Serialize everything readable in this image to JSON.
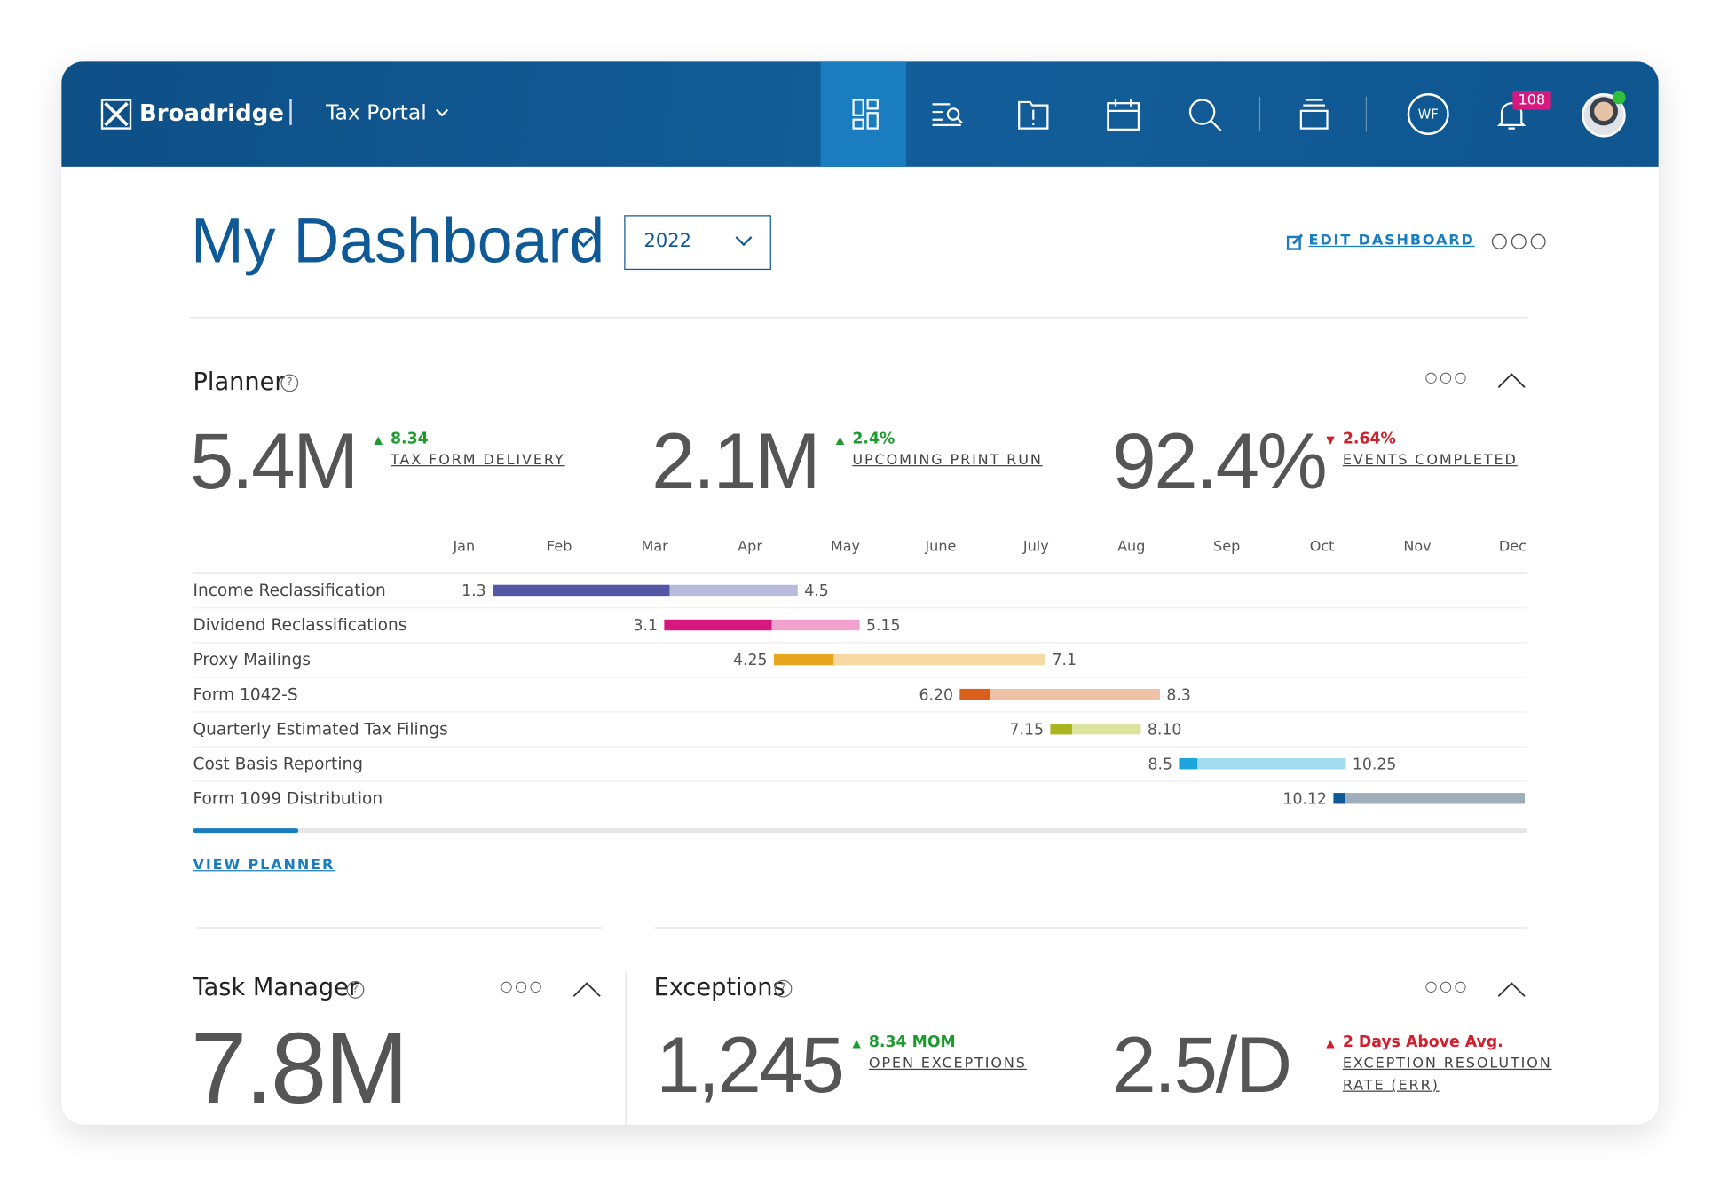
{
  "header": {
    "brand": "Broadridge",
    "app": "Tax Portal",
    "initials": "WF",
    "notifications": "108"
  },
  "page": {
    "title": "My Dashboard",
    "year": "2022",
    "edit": "EDIT DASHBOARD"
  },
  "planner": {
    "title": "Planner",
    "kpis": [
      {
        "value": "5.4M",
        "change": "8.34",
        "direction": "up",
        "color": "#1f9a2f",
        "label": "TAX FORM DELIVERY"
      },
      {
        "value": "2.1M",
        "change": "2.4%",
        "direction": "up",
        "color": "#1f9a2f",
        "label": "UPCOMING PRINT RUN"
      },
      {
        "value": "92.4%",
        "change": "2.64%",
        "direction": "down",
        "color": "#d0202e",
        "label": "EVENTS COMPLETED"
      }
    ],
    "months": [
      "Jan",
      "Feb",
      "Mar",
      "Apr",
      "May",
      "June",
      "July",
      "Aug",
      "Sep",
      "Oct",
      "Nov",
      "Dec"
    ],
    "rows": [
      {
        "name": "Income Reclassification",
        "start": 1.3,
        "end": 4.5,
        "progress": 58,
        "color": "#5457a6",
        "light": "#b9bbdd"
      },
      {
        "name": "Dividend Reclassifications",
        "start": 3.1,
        "end": 5.15,
        "progress": 55,
        "color": "#d6197f",
        "light": "#eea2cd"
      },
      {
        "name": "Proxy Mailings",
        "start": 4.25,
        "end": 7.1,
        "progress": 22,
        "color": "#e8a620",
        "light": "#f6d9a3"
      },
      {
        "name": "Form 1042-S",
        "start": {
          "value": 6.2,
          "label": "6.20"
        },
        "end": 8.3,
        "progress": 15,
        "color": "#d9601a",
        "light": "#efc2a6"
      },
      {
        "name": "Quarterly Estimated Tax Filings",
        "start": 7.15,
        "end": {
          "value": 8.1,
          "label": "8.10"
        },
        "progress": 24,
        "color": "#a8b51c",
        "light": "#dce39c"
      },
      {
        "name": "Cost Basis Reporting",
        "start": 8.5,
        "end": 10.25,
        "progress": 11,
        "color": "#1ba5dc",
        "light": "#a2daf0"
      },
      {
        "name": "Form 1099 Distribution",
        "start": 10.12,
        "end": null,
        "progress": 6,
        "color": "#0f5a96",
        "light": "#9eaebb"
      }
    ],
    "link": "VIEW PLANNER"
  },
  "task_manager": {
    "title": "Task Manager",
    "value": "7.8M"
  },
  "exceptions": {
    "title": "Exceptions",
    "kpis": [
      {
        "value": "1,245",
        "change": "8.34 MOM",
        "direction": "up",
        "color": "#1f9a2f",
        "label": "OPEN EXCEPTIONS"
      },
      {
        "value": "2.5/D",
        "change": "2 Days Above Avg.",
        "direction": "up",
        "color": "#d0202e",
        "label": "EXCEPTION RESOLUTION RATE (ERR)"
      }
    ]
  }
}
